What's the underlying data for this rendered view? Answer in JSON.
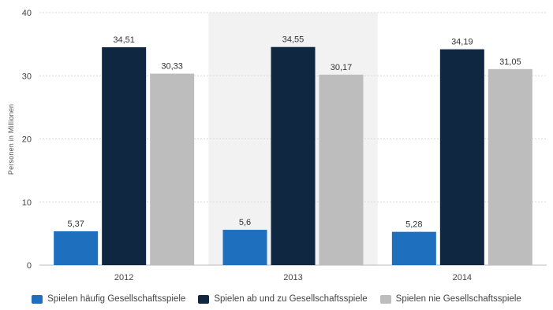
{
  "chart_data": {
    "type": "bar",
    "ylabel": "Personen in Millionen",
    "ylim": [
      0,
      40
    ],
    "yticks": [
      "0",
      "10",
      "20",
      "30",
      "40"
    ],
    "categories": [
      "2012",
      "2013",
      "2014"
    ],
    "highlighted_category": "2013",
    "grid": true,
    "legend_position": "bottom",
    "series": [
      {
        "name": "Spielen häufig Gesellschaftsspiele",
        "color": "#1f6fbf",
        "values": [
          5.37,
          5.6,
          5.28
        ],
        "labels": [
          "5,37",
          "5,6",
          "5,28"
        ]
      },
      {
        "name": "Spielen ab und zu Gesellschaftsspiele",
        "color": "#0f2740",
        "values": [
          34.51,
          34.55,
          34.19
        ],
        "labels": [
          "34,51",
          "34,55",
          "34,19"
        ]
      },
      {
        "name": "Spielen nie Gesellschaftsspiele",
        "color": "#bdbdbd",
        "values": [
          30.33,
          30.17,
          31.05
        ],
        "labels": [
          "30,33",
          "30,17",
          "31,05"
        ]
      }
    ]
  }
}
